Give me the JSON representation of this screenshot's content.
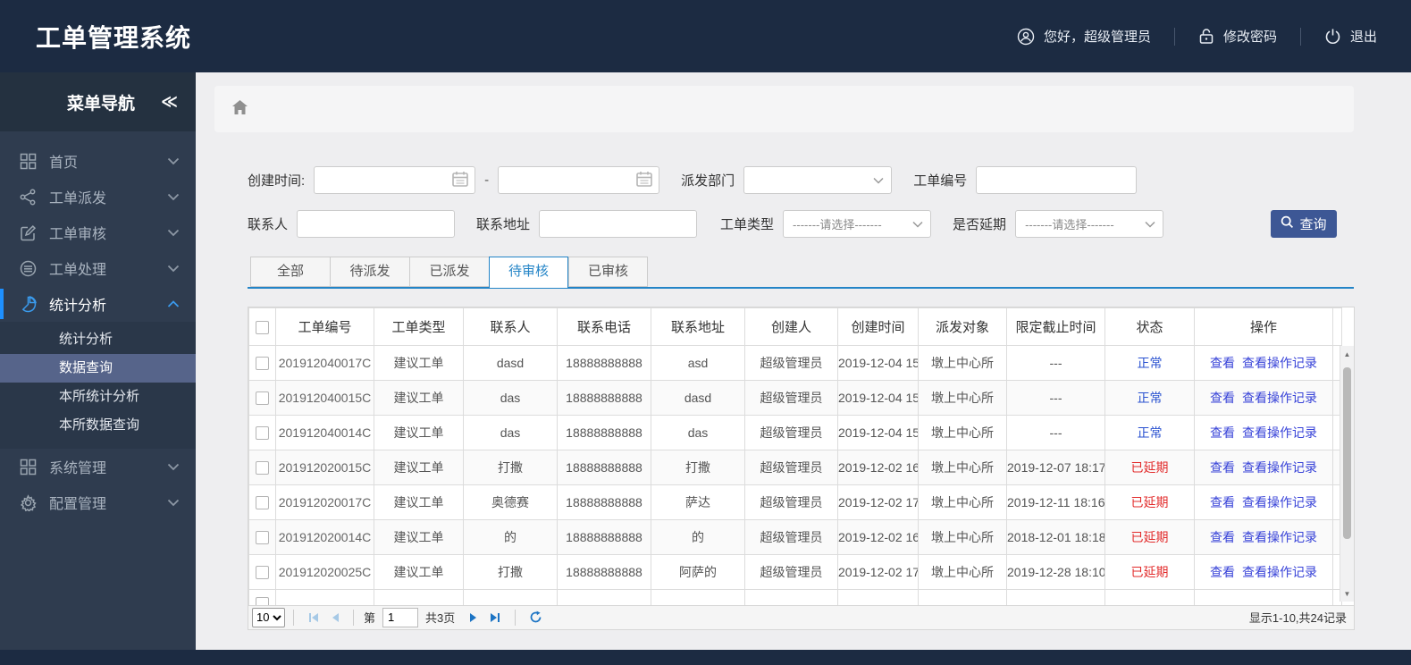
{
  "app": {
    "title": "工单管理系统"
  },
  "header": {
    "greeting": "您好，超级管理员",
    "change_password": "修改密码",
    "logout": "退出"
  },
  "sidebar": {
    "title": "菜单导航",
    "collapse_glyph": "≪",
    "items": [
      {
        "key": "home",
        "label": "首页",
        "icon": "grid-icon",
        "active": false
      },
      {
        "key": "dispatch",
        "label": "工单派发",
        "icon": "share-icon",
        "active": false
      },
      {
        "key": "review",
        "label": "工单审核",
        "icon": "edit-icon",
        "active": false
      },
      {
        "key": "process",
        "label": "工单处理",
        "icon": "database-icon",
        "active": false
      },
      {
        "key": "stats",
        "label": "统计分析",
        "icon": "pie-chart-icon",
        "active": true,
        "children": [
          "统计分析",
          "数据查询",
          "本所统计分析",
          "本所数据查询"
        ],
        "selected_child": "数据查询"
      },
      {
        "key": "system",
        "label": "系统管理",
        "icon": "grid-icon",
        "active": false
      },
      {
        "key": "config",
        "label": "配置管理",
        "icon": "gear-icon",
        "active": false
      }
    ]
  },
  "filters": {
    "create_time_label": "创建时间:",
    "date_separator": "-",
    "dispatch_dept_label": "派发部门",
    "order_no_label": "工单编号",
    "contact_label": "联系人",
    "address_label": "联系地址",
    "order_type_label": "工单类型",
    "order_type_value": "-------请选择-------",
    "delay_label": "是否延期",
    "delay_value": "-------请选择-------",
    "search_button": "查询"
  },
  "tabs": [
    {
      "label": "全部",
      "active": false
    },
    {
      "label": "待派发",
      "active": false
    },
    {
      "label": "已派发",
      "active": false
    },
    {
      "label": "待审核",
      "active": true
    },
    {
      "label": "已审核",
      "active": false
    }
  ],
  "table": {
    "columns": [
      "工单编号",
      "工单类型",
      "联系人",
      "联系电话",
      "联系地址",
      "创建人",
      "创建时间",
      "派发对象",
      "限定截止时间",
      "状态",
      "操作"
    ],
    "actions": [
      "查看",
      "查看操作记录"
    ],
    "rows": [
      {
        "no": "201912040017C",
        "type": "建议工单",
        "contact": "dasd",
        "phone": "18888888888",
        "address": "asd",
        "creator": "超级管理员",
        "created": "2019-12-04 15",
        "target": "墩上中心所",
        "deadline": "---",
        "status": "正常",
        "delayed": false
      },
      {
        "no": "201912040015C",
        "type": "建议工单",
        "contact": "das",
        "phone": "18888888888",
        "address": "dasd",
        "creator": "超级管理员",
        "created": "2019-12-04 15",
        "target": "墩上中心所",
        "deadline": "---",
        "status": "正常",
        "delayed": false
      },
      {
        "no": "201912040014C",
        "type": "建议工单",
        "contact": "das",
        "phone": "18888888888",
        "address": "das",
        "creator": "超级管理员",
        "created": "2019-12-04 15",
        "target": "墩上中心所",
        "deadline": "---",
        "status": "正常",
        "delayed": false
      },
      {
        "no": "201912020015C",
        "type": "建议工单",
        "contact": "打撒",
        "phone": "18888888888",
        "address": "打撒",
        "creator": "超级管理员",
        "created": "2019-12-02 16",
        "target": "墩上中心所",
        "deadline": "2019-12-07 18:17",
        "status": "已延期",
        "delayed": true
      },
      {
        "no": "201912020017C",
        "type": "建议工单",
        "contact": "奥德赛",
        "phone": "18888888888",
        "address": "萨达",
        "creator": "超级管理员",
        "created": "2019-12-02 17",
        "target": "墩上中心所",
        "deadline": "2019-12-11 18:16",
        "status": "已延期",
        "delayed": true
      },
      {
        "no": "201912020014C",
        "type": "建议工单",
        "contact": "的",
        "phone": "18888888888",
        "address": "的",
        "creator": "超级管理员",
        "created": "2019-12-02 16",
        "target": "墩上中心所",
        "deadline": "2018-12-01 18:18",
        "status": "已延期",
        "delayed": true
      },
      {
        "no": "201912020025C",
        "type": "建议工单",
        "contact": "打撒",
        "phone": "18888888888",
        "address": "阿萨的",
        "creator": "超级管理员",
        "created": "2019-12-02 17",
        "target": "墩上中心所",
        "deadline": "2019-12-28 18:10",
        "status": "已延期",
        "delayed": true
      }
    ]
  },
  "pagination": {
    "page_size": "10",
    "page_prefix": "第",
    "page_value": "1",
    "total_pages": "共3页",
    "summary": "显示1-10,共24记录"
  },
  "colors": {
    "topbar_bg": "#1c2b42",
    "sidebar_bg": "#2f3c4f",
    "selected_menu_bg": "#56648a",
    "accent_blue": "#1e90ff",
    "tab_active": "#2384c7",
    "search_button_bg": "#3d5795",
    "link_color": "#3843d8",
    "status_normal": "#2a52d0",
    "status_delayed": "#e22b2b"
  }
}
